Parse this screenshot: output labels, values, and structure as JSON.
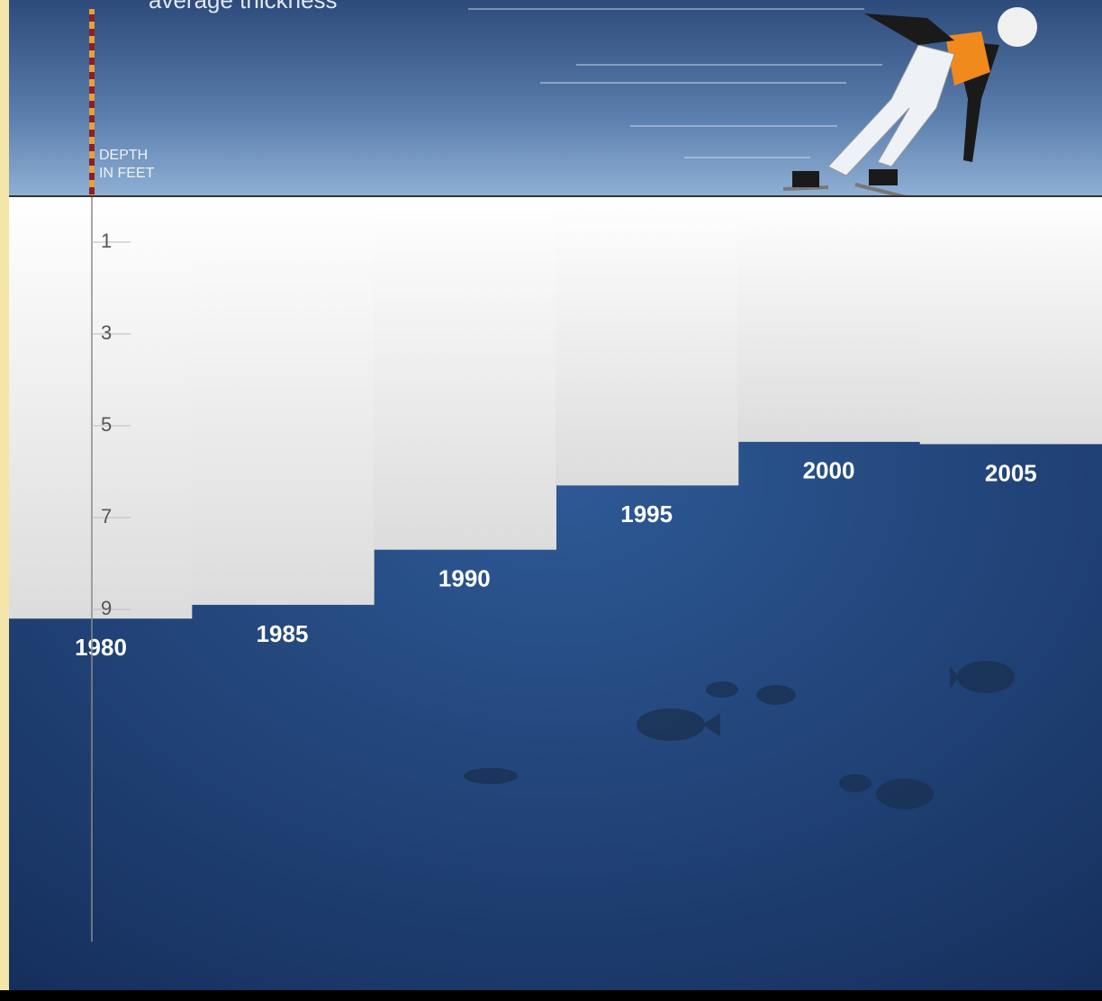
{
  "chart_data": {
    "type": "bar",
    "title": "average thickness",
    "y_label": "DEPTH IN FEET",
    "categories": [
      "1980",
      "1985",
      "1990",
      "1995",
      "2000",
      "2005"
    ],
    "values": [
      9.2,
      8.9,
      7.7,
      6.3,
      5.35,
      5.4
    ],
    "color": "#ececec",
    "ylim": [
      0,
      16
    ],
    "yticks": [
      1,
      3,
      5,
      7,
      9
    ],
    "y_reversed": true
  }
}
